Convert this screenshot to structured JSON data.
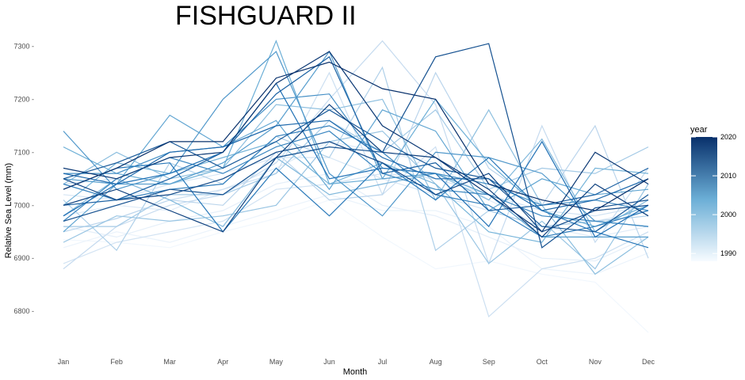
{
  "chart_data": {
    "type": "line",
    "title": "FISHGUARD II",
    "xlabel": "Month",
    "ylabel": "Relative Sea Level (mm)",
    "categories": [
      "Jan",
      "Feb",
      "Mar",
      "Apr",
      "May",
      "Jun",
      "Jul",
      "Aug",
      "Sep",
      "Oct",
      "Nov",
      "Dec"
    ],
    "ylim": [
      6745,
      7335
    ],
    "yticks": [
      6800,
      6900,
      7000,
      7100,
      7200,
      7300
    ],
    "ytick_labels": [
      "6800 -",
      "6900 -",
      "7000 -",
      "7100 -",
      "7200 -",
      "7300 -"
    ],
    "grid": false,
    "legend": {
      "title": "year",
      "position": "right",
      "type": "colorbar",
      "range": [
        1988,
        2020
      ],
      "ticks": [
        1990,
        2000,
        2010,
        2020
      ],
      "tick_labels": [
        "1990",
        "2000",
        "2010",
        "2020"
      ],
      "colors": [
        "#f7fbff",
        "#08306b"
      ]
    },
    "series": [
      {
        "year": 1989,
        "values": [
          6935,
          6930,
          6920,
          6950,
          6975,
          7010,
          6940,
          6880,
          6895,
          6870,
          6855,
          6760
        ]
      },
      {
        "year": 1990,
        "values": [
          6920,
          6950,
          6930,
          6960,
          6990,
          7020,
          6990,
          6990,
          6960,
          6880,
          6870,
          6910
        ]
      },
      {
        "year": 1991,
        "values": [
          6960,
          6940,
          6970,
          6990,
          7040,
          7060,
          7000,
          6980,
          6940,
          6900,
          6895,
          6940
        ]
      },
      {
        "year": 1992,
        "values": [
          6980,
          7000,
          6990,
          7030,
          7070,
          7120,
          7100,
          7080,
          7010,
          6960,
          6940,
          6960
        ]
      },
      {
        "year": 1993,
        "values": [
          7020,
          7010,
          7040,
          7060,
          7090,
          7090,
          7050,
          7020,
          6990,
          6960,
          6970,
          6990
        ]
      },
      {
        "year": 1994,
        "values": [
          6890,
          6930,
          6950,
          6970,
          7030,
          7040,
          7060,
          7050,
          7020,
          6990,
          6980,
          7000
        ]
      },
      {
        "year": 1995,
        "values": [
          7040,
          7050,
          7010,
          7030,
          7060,
          7250,
          7020,
          7110,
          6790,
          6880,
          6900,
          6950
        ]
      },
      {
        "year": 1996,
        "values": [
          6880,
          6960,
          7000,
          7020,
          7080,
          7200,
          7310,
          7190,
          6890,
          7150,
          6930,
          7070
        ]
      },
      {
        "year": 1997,
        "values": [
          6950,
          6975,
          7010,
          7000,
          7100,
          7010,
          7020,
          7250,
          7070,
          7000,
          7150,
          6900
        ]
      },
      {
        "year": 1998,
        "values": [
          7010,
          6915,
          7080,
          7040,
          7130,
          7090,
          7260,
          6915,
          6990,
          6960,
          6970,
          6980
        ]
      },
      {
        "year": 1999,
        "values": [
          6960,
          6960,
          7020,
          7020,
          7060,
          7160,
          7100,
          7180,
          7030,
          7070,
          7060,
          7110
        ]
      },
      {
        "year": 2000,
        "values": [
          6930,
          6980,
          6970,
          6980,
          7000,
          7120,
          7140,
          7040,
          6890,
          6970,
          6880,
          7040
        ]
      },
      {
        "year": 2001,
        "values": [
          7040,
          7100,
          7050,
          7070,
          7190,
          7180,
          7200,
          7010,
          7180,
          7000,
          6870,
          6940
        ]
      },
      {
        "year": 2002,
        "values": [
          6980,
          7050,
          7010,
          6960,
          7090,
          7020,
          7040,
          7060,
          7010,
          7125,
          6950,
          7010
        ]
      },
      {
        "year": 2003,
        "values": [
          7000,
          7080,
          7060,
          7090,
          7120,
          7040,
          7080,
          7040,
          6950,
          6930,
          7070,
          7060
        ]
      },
      {
        "year": 2004,
        "values": [
          7110,
          7060,
          7040,
          7070,
          7310,
          7040,
          7050,
          7200,
          7080,
          6990,
          6960,
          7000
        ]
      },
      {
        "year": 2005,
        "values": [
          6950,
          7040,
          7170,
          7110,
          7160,
          7030,
          7180,
          7140,
          6990,
          7050,
          7020,
          7030
        ]
      },
      {
        "year": 2006,
        "values": [
          7050,
          7040,
          7040,
          7080,
          7150,
          7290,
          7050,
          7060,
          7020,
          6940,
          6940,
          6940
        ]
      },
      {
        "year": 2007,
        "values": [
          7140,
          7030,
          7060,
          7200,
          7290,
          7060,
          6980,
          7100,
          7090,
          7060,
          6970,
          6960
        ]
      },
      {
        "year": 2008,
        "values": [
          7060,
          7060,
          7100,
          7110,
          7200,
          7210,
          7070,
          7060,
          7040,
          7000,
          7010,
          6990
        ]
      },
      {
        "year": 2009,
        "values": [
          6970,
          7050,
          7090,
          7060,
          7110,
          7140,
          7060,
          7030,
          7020,
          6980,
          6970,
          6960
        ]
      },
      {
        "year": 2010,
        "values": [
          7040,
          7010,
          7030,
          7040,
          7130,
          7150,
          7100,
          7020,
          7000,
          6940,
          6960,
          6990
        ]
      },
      {
        "year": 2011,
        "values": [
          7030,
          7070,
          7080,
          6950,
          7070,
          6980,
          7080,
          7010,
          7090,
          6990,
          6950,
          6920
        ]
      },
      {
        "year": 2012,
        "values": [
          6980,
          7040,
          7060,
          7100,
          7230,
          7050,
          7070,
          7060,
          6960,
          7120,
          6940,
          7000
        ]
      },
      {
        "year": 2013,
        "values": [
          7060,
          7040,
          7100,
          7110,
          7150,
          7160,
          7090,
          7050,
          7050,
          6990,
          7010,
          7050
        ]
      },
      {
        "year": 2014,
        "values": [
          7000,
          7010,
          7050,
          7100,
          7210,
          7280,
          7060,
          7080,
          6990,
          7000,
          7020,
          7070
        ]
      },
      {
        "year": 2015,
        "values": [
          7050,
          7080,
          7120,
          7070,
          7120,
          7180,
          7120,
          7070,
          7050,
          6960,
          6950,
          7020
        ]
      },
      {
        "year": 2016,
        "values": [
          6970,
          7000,
          7030,
          7020,
          7090,
          7110,
          7100,
          7280,
          7305,
          6920,
          6995,
          7010
        ]
      },
      {
        "year": 2017,
        "values": [
          7050,
          7010,
          7020,
          7050,
          7100,
          7120,
          7080,
          7020,
          7060,
          6950,
          6990,
          7000
        ]
      },
      {
        "year": 2018,
        "values": [
          7000,
          7030,
          6990,
          6950,
          7090,
          7190,
          7100,
          7090,
          7030,
          6940,
          7040,
          6980
        ]
      },
      {
        "year": 2019,
        "values": [
          7070,
          7050,
          7090,
          7100,
          7230,
          7290,
          7150,
          7090,
          7020,
          6950,
          7100,
          7040
        ]
      },
      {
        "year": 2020,
        "values": [
          7030,
          7070,
          7120,
          7120,
          7240,
          7270,
          7220,
          7200,
          7040,
          7010,
          6990,
          7050
        ]
      }
    ]
  }
}
